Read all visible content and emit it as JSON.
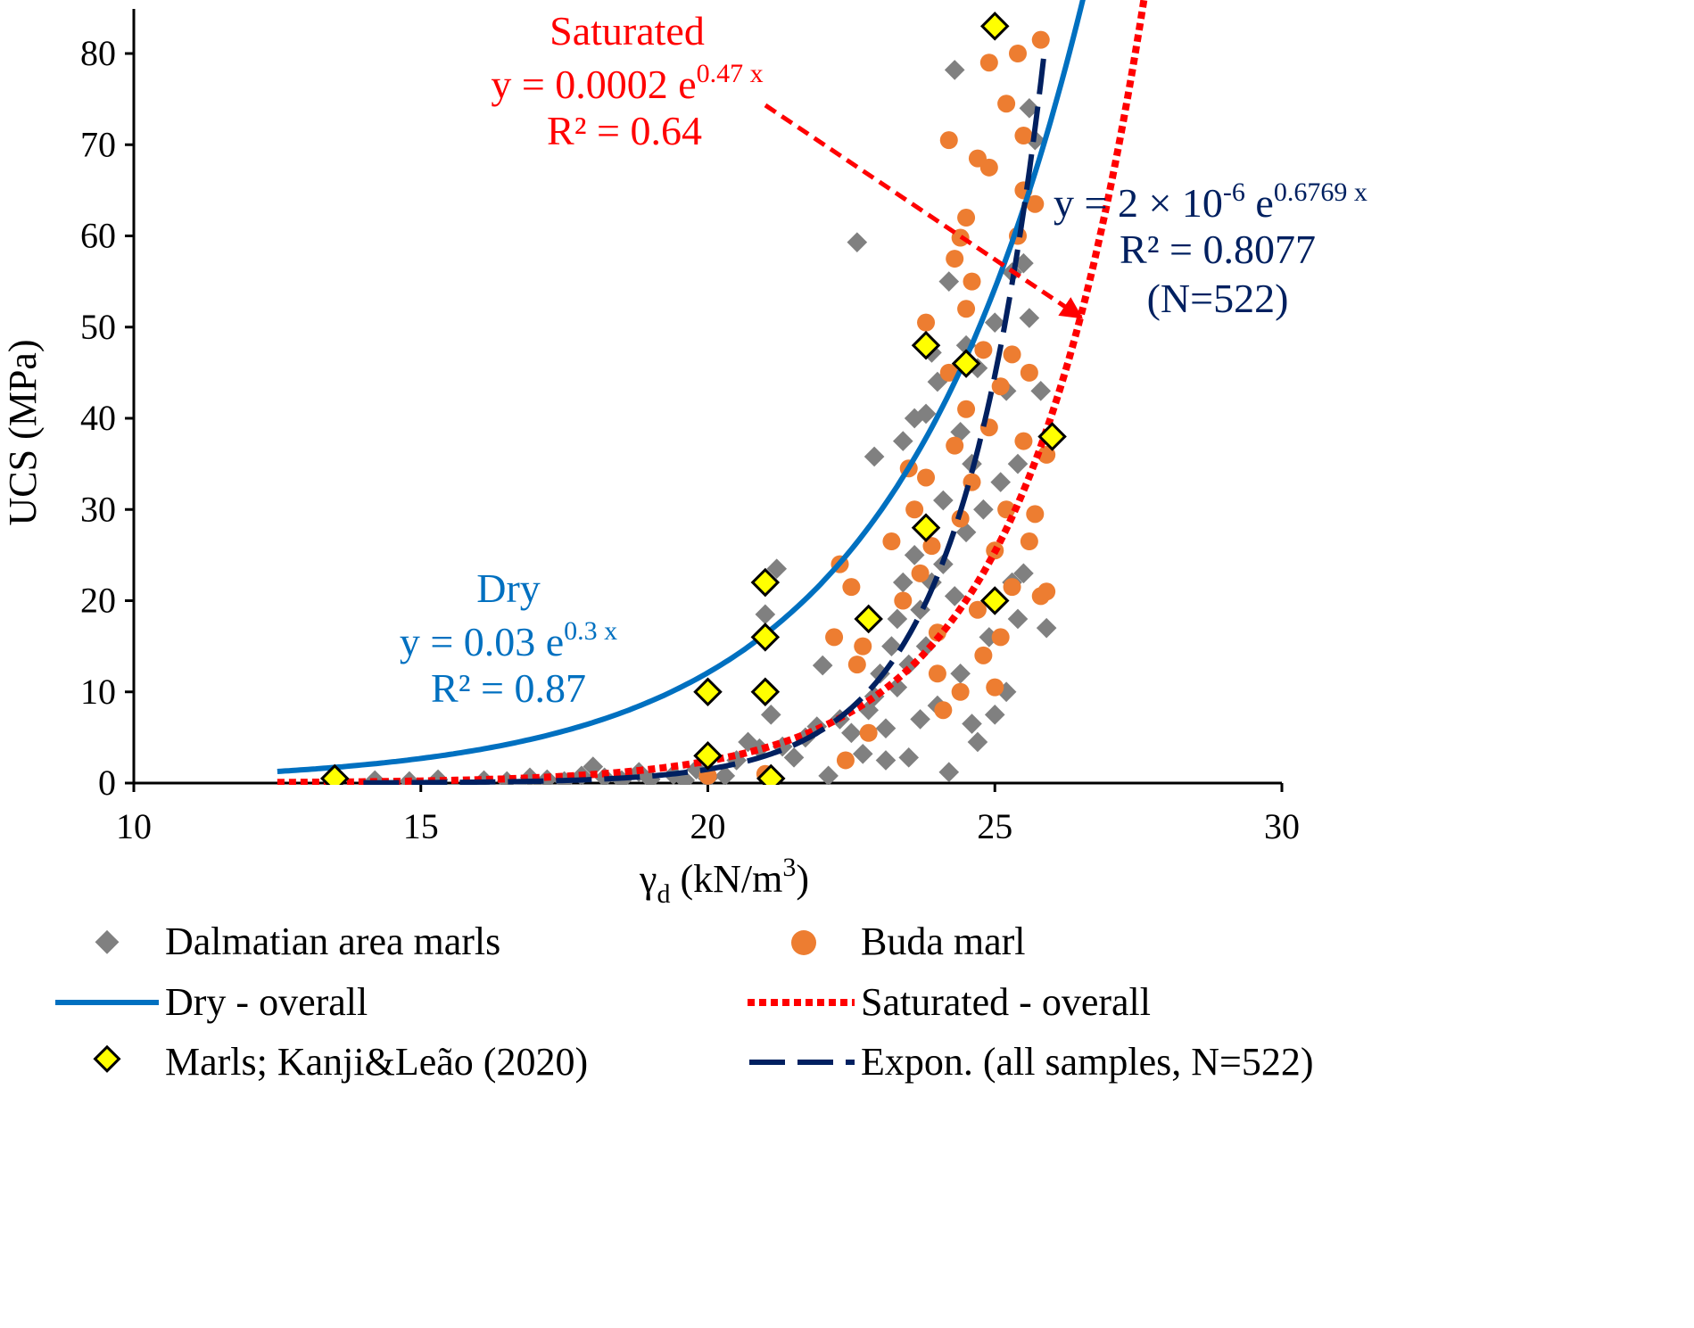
{
  "chart_data": {
    "type": "scatter",
    "title": "",
    "xlabel": "γd (kN/m3)",
    "xlabel_main": "γ",
    "xlabel_sub": "d",
    "xlabel_rest": " (kN/m",
    "xlabel_sup": "3",
    "xlabel_close": ")",
    "ylabel": "UCS (MPa)",
    "xlim": [
      10,
      30
    ],
    "ylim": [
      0,
      85
    ],
    "x_ticks": [
      10,
      15,
      20,
      25,
      30
    ],
    "y_ticks": [
      0,
      10,
      20,
      30,
      40,
      50,
      60,
      70,
      80
    ],
    "grid": false,
    "legend_position": "bottom",
    "colors": {
      "dalmatian": "#808080",
      "buda": "#ED7D31",
      "dry": "#0070C0",
      "saturated": "#FF0000",
      "expon": "#002060",
      "kanji_fill": "#FFFF00",
      "kanji_edge": "#000000"
    },
    "series": [
      {
        "name": "Dalmatian area marls",
        "kind": "scatter",
        "marker": "diamond",
        "points": [
          [
            14.2,
            0.3
          ],
          [
            14.8,
            0.2
          ],
          [
            15.3,
            0.4
          ],
          [
            16.1,
            0.3
          ],
          [
            16.5,
            0.2
          ],
          [
            16.9,
            0.6
          ],
          [
            17.2,
            0.4
          ],
          [
            17.5,
            0.2
          ],
          [
            17.8,
            0.8
          ],
          [
            18.0,
            1.8
          ],
          [
            18.2,
            0.6
          ],
          [
            18.5,
            0.3
          ],
          [
            18.8,
            1.2
          ],
          [
            19.0,
            0.4
          ],
          [
            19.4,
            0.9
          ],
          [
            19.6,
            0.3
          ],
          [
            19.8,
            1.5
          ],
          [
            20.0,
            0.5
          ],
          [
            20.3,
            0.8
          ],
          [
            20.5,
            2.5
          ],
          [
            20.7,
            4.5
          ],
          [
            20.9,
            3.8
          ],
          [
            21.0,
            18.5
          ],
          [
            21.05,
            10.2
          ],
          [
            21.1,
            7.5
          ],
          [
            21.2,
            23.5
          ],
          [
            21.3,
            4.0
          ],
          [
            21.5,
            2.8
          ],
          [
            21.7,
            5.0
          ],
          [
            21.9,
            6.2
          ],
          [
            22.0,
            12.9
          ],
          [
            22.1,
            0.8
          ],
          [
            22.3,
            7.0
          ],
          [
            22.5,
            5.5
          ],
          [
            22.6,
            59.3
          ],
          [
            22.7,
            3.2
          ],
          [
            22.8,
            8.0
          ],
          [
            22.9,
            9.5
          ],
          [
            22.9,
            35.8
          ],
          [
            23.0,
            12.0
          ],
          [
            23.1,
            6.0
          ],
          [
            23.1,
            2.5
          ],
          [
            23.2,
            15.0
          ],
          [
            23.3,
            18.0
          ],
          [
            23.3,
            10.5
          ],
          [
            23.4,
            22.0
          ],
          [
            23.4,
            37.5
          ],
          [
            23.5,
            13.0
          ],
          [
            23.5,
            2.8
          ],
          [
            23.6,
            25.0
          ],
          [
            23.6,
            40.0
          ],
          [
            23.7,
            19.0
          ],
          [
            23.7,
            7.0
          ],
          [
            23.8,
            28.0
          ],
          [
            23.8,
            15.0
          ],
          [
            23.8,
            40.5
          ],
          [
            23.9,
            22.0
          ],
          [
            23.9,
            47.2
          ],
          [
            24.0,
            44.0
          ],
          [
            24.0,
            8.5
          ],
          [
            24.1,
            31.0
          ],
          [
            24.1,
            24.0
          ],
          [
            24.2,
            55.0
          ],
          [
            24.2,
            1.2
          ],
          [
            24.3,
            78.2
          ],
          [
            24.3,
            20.5
          ],
          [
            24.4,
            38.5
          ],
          [
            24.4,
            12.0
          ],
          [
            24.5,
            48.0
          ],
          [
            24.5,
            27.5
          ],
          [
            24.6,
            6.5
          ],
          [
            24.6,
            35.0
          ],
          [
            24.7,
            4.5
          ],
          [
            24.7,
            45.5
          ],
          [
            24.8,
            30.0
          ],
          [
            24.9,
            16.0
          ],
          [
            25.0,
            7.5
          ],
          [
            25.0,
            50.5
          ],
          [
            25.1,
            33.0
          ],
          [
            25.2,
            43.0
          ],
          [
            25.2,
            10.0
          ],
          [
            25.3,
            56.0
          ],
          [
            25.3,
            22.0
          ],
          [
            25.4,
            35.0
          ],
          [
            25.4,
            18.0
          ],
          [
            25.5,
            57.0
          ],
          [
            25.5,
            23.0
          ],
          [
            25.6,
            51.0
          ],
          [
            25.6,
            74.0
          ],
          [
            25.7,
            70.5
          ],
          [
            25.8,
            43.0
          ],
          [
            25.9,
            17.0
          ]
        ]
      },
      {
        "name": "Buda marl",
        "kind": "scatter",
        "marker": "circle",
        "points": [
          [
            20.0,
            0.8
          ],
          [
            21.0,
            1.0
          ],
          [
            22.2,
            16.0
          ],
          [
            22.3,
            24.0
          ],
          [
            22.4,
            2.5
          ],
          [
            22.5,
            21.5
          ],
          [
            22.6,
            13.0
          ],
          [
            22.7,
            15.0
          ],
          [
            22.8,
            5.5
          ],
          [
            23.2,
            26.5
          ],
          [
            23.4,
            20.0
          ],
          [
            23.5,
            34.5
          ],
          [
            23.6,
            30.0
          ],
          [
            23.7,
            23.0
          ],
          [
            23.8,
            50.5
          ],
          [
            23.8,
            33.5
          ],
          [
            23.9,
            26.0
          ],
          [
            24.0,
            12.0
          ],
          [
            24.0,
            16.5
          ],
          [
            24.1,
            8.0
          ],
          [
            24.2,
            70.5
          ],
          [
            24.2,
            45.0
          ],
          [
            24.3,
            57.5
          ],
          [
            24.3,
            37.0
          ],
          [
            24.4,
            59.8
          ],
          [
            24.4,
            29.0
          ],
          [
            24.4,
            10.0
          ],
          [
            24.5,
            62.0
          ],
          [
            24.5,
            52.0
          ],
          [
            24.5,
            41.0
          ],
          [
            24.6,
            33.0
          ],
          [
            24.6,
            55.0
          ],
          [
            24.7,
            19.0
          ],
          [
            24.7,
            68.5
          ],
          [
            24.8,
            47.5
          ],
          [
            24.8,
            14.0
          ],
          [
            24.9,
            79.0
          ],
          [
            24.9,
            67.5
          ],
          [
            24.9,
            39.0
          ],
          [
            25.0,
            10.5
          ],
          [
            25.0,
            25.5
          ],
          [
            25.1,
            43.5
          ],
          [
            25.1,
            16.0
          ],
          [
            25.2,
            74.5
          ],
          [
            25.2,
            30.0
          ],
          [
            25.3,
            21.5
          ],
          [
            25.3,
            47.0
          ],
          [
            25.4,
            80.0
          ],
          [
            25.4,
            60.0
          ],
          [
            25.5,
            71.0
          ],
          [
            25.5,
            65.0
          ],
          [
            25.5,
            37.5
          ],
          [
            25.6,
            45.0
          ],
          [
            25.6,
            26.5
          ],
          [
            25.7,
            63.5
          ],
          [
            25.7,
            29.5
          ],
          [
            25.8,
            81.5
          ],
          [
            25.8,
            20.5
          ],
          [
            25.9,
            36.0
          ],
          [
            25.9,
            21.0
          ]
        ]
      },
      {
        "name": "Marls; Kanji&Leão (2020)",
        "kind": "scatter",
        "marker": "diamond-outline",
        "points": [
          [
            13.5,
            0.5
          ],
          [
            20.0,
            3.0
          ],
          [
            20.0,
            10.0
          ],
          [
            21.0,
            22.0
          ],
          [
            21.0,
            16.0
          ],
          [
            21.0,
            10.0
          ],
          [
            21.1,
            0.5
          ],
          [
            22.8,
            18.0
          ],
          [
            23.8,
            48.0
          ],
          [
            23.8,
            28.0
          ],
          [
            24.5,
            46.0
          ],
          [
            25.0,
            20.0
          ],
          [
            25.0,
            83.0
          ],
          [
            26.0,
            38.0
          ]
        ]
      },
      {
        "name": "Dry - overall",
        "kind": "line",
        "style": "solid",
        "equation": {
          "a": 0.03,
          "b": 0.3
        },
        "x_range": [
          12.5,
          28.5
        ]
      },
      {
        "name": "Saturated - overall",
        "kind": "line",
        "style": "dotted",
        "equation": {
          "a": 0.0002,
          "b": 0.47
        },
        "x_range": [
          12.5,
          30
        ]
      },
      {
        "name": "Expon. (all  samples, N=522)",
        "kind": "line",
        "style": "dashed",
        "equation": {
          "a": 2e-06,
          "b": 0.6769
        },
        "x_range": [
          14,
          25.85
        ]
      }
    ],
    "annotations": {
      "saturated_title": "Saturated",
      "saturated_eq_main": "y = 0.0002 e",
      "saturated_eq_sup": "0.47 x",
      "saturated_r2": "R² = 0.64",
      "expon_eq_main": "y = 2 × 10",
      "expon_eq_sup1": "-6",
      "expon_eq_mid": " e",
      "expon_eq_sup2": "0.6769 x",
      "expon_r2": "R² = 0.8077",
      "expon_n": "(N=522)",
      "dry_title": "Dry",
      "dry_eq_main": "y = 0.03 e",
      "dry_eq_sup": "0.3 x",
      "dry_r2": "R² = 0.87"
    },
    "legend": [
      {
        "label": "Dalmatian area marls",
        "marker": "diamond"
      },
      {
        "label": "Buda marl",
        "marker": "circle"
      },
      {
        "label": "Dry - overall",
        "marker": "solid-line"
      },
      {
        "label": "Saturated - overall",
        "marker": "dotted-line"
      },
      {
        "label": "Marls; Kanji&Leão (2020)",
        "marker": "diamond-outline"
      },
      {
        "label": "Expon. (all  samples, N=522)",
        "marker": "dashed-line"
      }
    ]
  }
}
